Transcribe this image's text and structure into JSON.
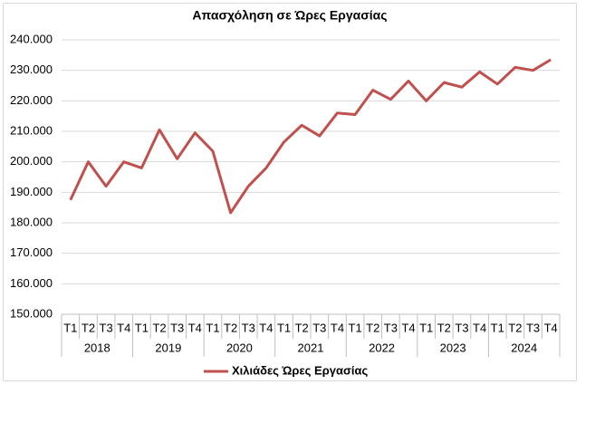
{
  "chart_data": {
    "type": "line",
    "title": "Απασχόληση σε Ώρες Εργασίας",
    "categories": [
      "T1",
      "T2",
      "T3",
      "T4",
      "T1",
      "T2",
      "T3",
      "T4",
      "T1",
      "T2",
      "T3",
      "T4",
      "T1",
      "T2",
      "T3",
      "T4",
      "T1",
      "T2",
      "T3",
      "T4",
      "T1",
      "T2",
      "T3",
      "T4",
      "T1",
      "T2",
      "T3",
      "T4"
    ],
    "category_groups": [
      "2018",
      "2019",
      "2020",
      "2021",
      "2022",
      "2023",
      "2024"
    ],
    "series": [
      {
        "name": "Χιλιάδες Ώρες Εργασίας",
        "color": "#c0504d",
        "values": [
          187.5,
          200,
          192,
          200,
          198,
          210.5,
          201,
          209.5,
          203.5,
          183.3,
          192,
          198,
          206.5,
          212,
          208.5,
          216,
          215.5,
          223.5,
          220.5,
          226.5,
          220,
          226,
          224.5,
          229.5,
          225.5,
          231,
          230,
          233.5
        ]
      }
    ],
    "ylim": [
      150,
      240
    ],
    "yticks": [
      {
        "value": 150,
        "label": "150.000"
      },
      {
        "value": 160,
        "label": "160.000"
      },
      {
        "value": 170,
        "label": "170.000"
      },
      {
        "value": 180,
        "label": "180.000"
      },
      {
        "value": 190,
        "label": "190.000"
      },
      {
        "value": 200,
        "label": "200.000"
      },
      {
        "value": 210,
        "label": "210.000"
      },
      {
        "value": 220,
        "label": "220.000"
      },
      {
        "value": 230,
        "label": "230.000"
      },
      {
        "value": 240,
        "label": "240.000"
      }
    ],
    "grid": true,
    "legend": "bottom"
  }
}
